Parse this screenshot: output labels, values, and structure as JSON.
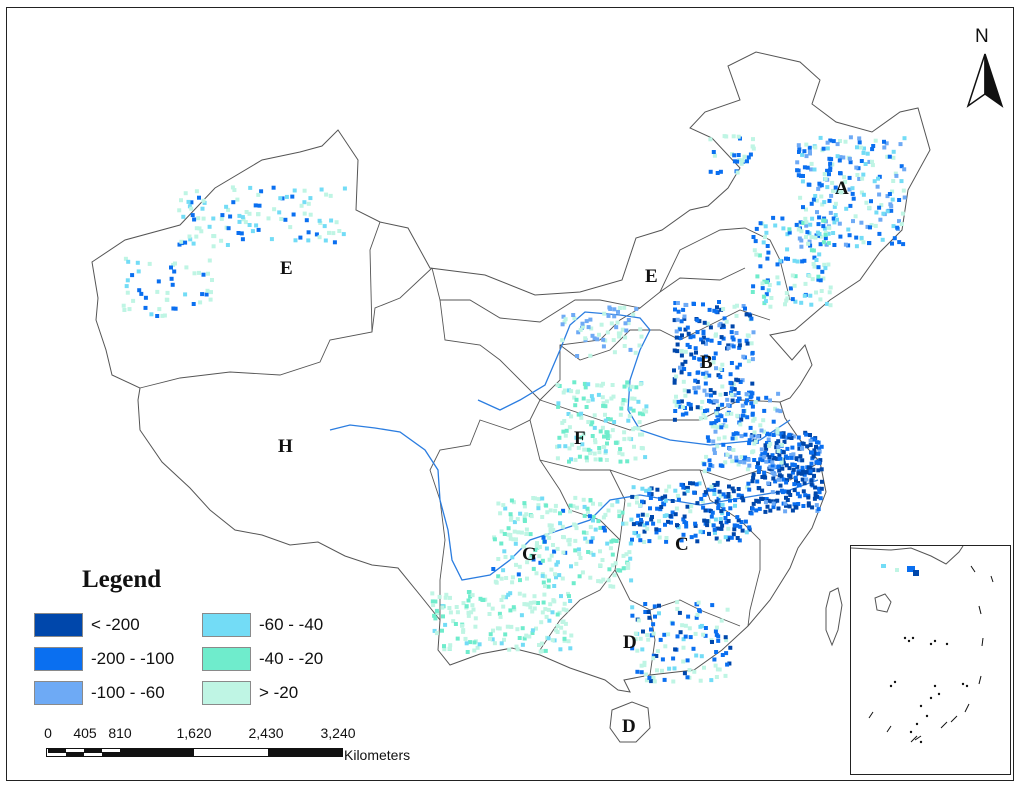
{
  "map": {
    "north_label": "N",
    "region_labels": [
      "A",
      "B",
      "C",
      "D",
      "D",
      "E",
      "E",
      "F",
      "G",
      "H"
    ],
    "colors": {
      "lt_-200": "#0047ab",
      "-200_-100": "#0a6ff0",
      "-100_-60": "#6eaaf5",
      "-60_-40": "#73dcf6",
      "-40_-20": "#6feccc",
      "gt_-20": "#bff5e4",
      "border": "#555555",
      "river": "#2b7de0",
      "coast": "#7a7a7a"
    }
  },
  "legend": {
    "title": "Legend",
    "items": [
      {
        "label": "< -200",
        "color": "#0047ab"
      },
      {
        "label": "-200 - -100",
        "color": "#0a6ff0"
      },
      {
        "label": "-100 - -60",
        "color": "#6eaaf5"
      },
      {
        "label": "-60 - -40",
        "color": "#73dcf6"
      },
      {
        "label": "-40 - -20",
        "color": "#6feccc"
      },
      {
        "label": "> -20",
        "color": "#bff5e4"
      }
    ]
  },
  "scale_bar": {
    "ticks": [
      "0",
      "405",
      "810",
      "1,620",
      "2,430",
      "3,240"
    ],
    "unit": "Kilometers"
  }
}
